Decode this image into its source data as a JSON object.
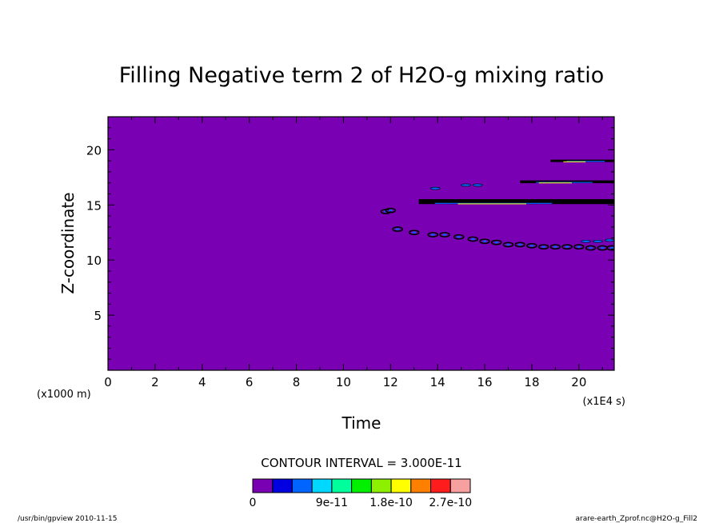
{
  "chart_data": {
    "type": "heatmap",
    "title": "Filling Negative term 2 of H2O-g mixing ratio",
    "xlabel": "Time",
    "ylabel": "Z-coordinate",
    "x_unit_label": "(x1E4 s)",
    "y_unit_label": "(x1000 m)",
    "xlim": [
      0,
      21.5
    ],
    "ylim": [
      0,
      23
    ],
    "x_ticks": [
      "0",
      "2",
      "4",
      "6",
      "8",
      "10",
      "12",
      "14",
      "16",
      "18",
      "20"
    ],
    "y_ticks": [
      "5",
      "10",
      "15",
      "20"
    ],
    "contour_interval_label": "CONTOUR INTERVAL = 3.000E-11",
    "background_color": "#7a00b4",
    "colorbar": {
      "colors": [
        "#7a00b4",
        "#0000e0",
        "#0064ff",
        "#00d8ff",
        "#00ff9c",
        "#00f000",
        "#8cf000",
        "#ffff00",
        "#ff8000",
        "#ff1c1c",
        "#f7a0a0"
      ],
      "labels": [
        "0",
        "9e-11",
        "1.8e-10",
        "2.7e-10"
      ]
    },
    "bands": [
      {
        "x_start": 13.2,
        "x_end": 21.5,
        "z": 15.3,
        "thickness": 0.45
      },
      {
        "x_start": 17.5,
        "x_end": 21.5,
        "z": 17.1,
        "thickness": 0.25
      },
      {
        "x_start": 18.8,
        "x_end": 21.5,
        "z": 19.0,
        "thickness": 0.15
      }
    ],
    "blobs_trail": [
      {
        "x": 11.8,
        "z": 14.4
      },
      {
        "x": 12.0,
        "z": 14.5
      },
      {
        "x": 12.3,
        "z": 12.8
      },
      {
        "x": 13.0,
        "z": 12.5
      },
      {
        "x": 13.8,
        "z": 12.3
      },
      {
        "x": 14.3,
        "z": 12.3
      },
      {
        "x": 14.9,
        "z": 12.1
      },
      {
        "x": 15.5,
        "z": 11.9
      },
      {
        "x": 16.0,
        "z": 11.7
      },
      {
        "x": 16.5,
        "z": 11.6
      },
      {
        "x": 17.0,
        "z": 11.4
      },
      {
        "x": 17.5,
        "z": 11.4
      },
      {
        "x": 18.0,
        "z": 11.3
      },
      {
        "x": 18.5,
        "z": 11.2
      },
      {
        "x": 19.0,
        "z": 11.2
      },
      {
        "x": 19.5,
        "z": 11.2
      },
      {
        "x": 20.0,
        "z": 11.2
      },
      {
        "x": 20.5,
        "z": 11.1
      },
      {
        "x": 21.0,
        "z": 11.1
      },
      {
        "x": 21.4,
        "z": 11.1
      }
    ],
    "blue_features": [
      {
        "x": 13.9,
        "z": 16.5
      },
      {
        "x": 15.2,
        "z": 16.8
      },
      {
        "x": 15.7,
        "z": 16.8
      },
      {
        "x": 20.3,
        "z": 11.7
      },
      {
        "x": 20.8,
        "z": 11.7
      },
      {
        "x": 21.3,
        "z": 11.8
      }
    ]
  },
  "footer": {
    "left": "/usr/bin/gpview  2010-11-15",
    "right": "arare-earth_Zprof.nc@H2O-g_Fill2"
  }
}
